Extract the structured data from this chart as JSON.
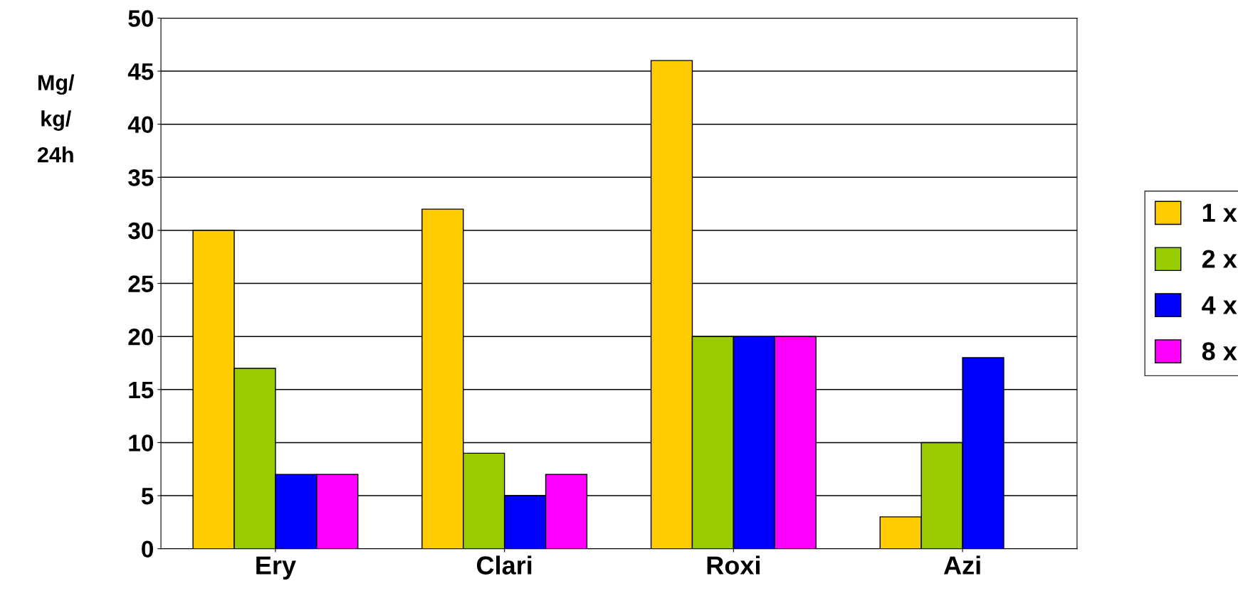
{
  "chart_data": {
    "type": "bar",
    "ylabel": "Mg/\nkg/\n24h",
    "categories": [
      "Ery",
      "Clari",
      "Roxi",
      "Azi"
    ],
    "series": [
      {
        "name": "1 x",
        "color": "#ffcc00",
        "values": [
          30,
          32,
          46,
          3
        ]
      },
      {
        "name": "2 x",
        "color": "#99cc00",
        "values": [
          17,
          9,
          20,
          10
        ]
      },
      {
        "name": "4 x",
        "color": "#0000ff",
        "values": [
          7,
          5,
          20,
          18
        ]
      },
      {
        "name": "8 x",
        "color": "#ff00ff",
        "values": [
          7,
          7,
          20,
          null
        ]
      }
    ],
    "ylim": [
      0,
      50
    ],
    "yticks": [
      0,
      5,
      10,
      15,
      20,
      25,
      30,
      35,
      40,
      45,
      50
    ],
    "grid": "y",
    "legend": "right"
  }
}
